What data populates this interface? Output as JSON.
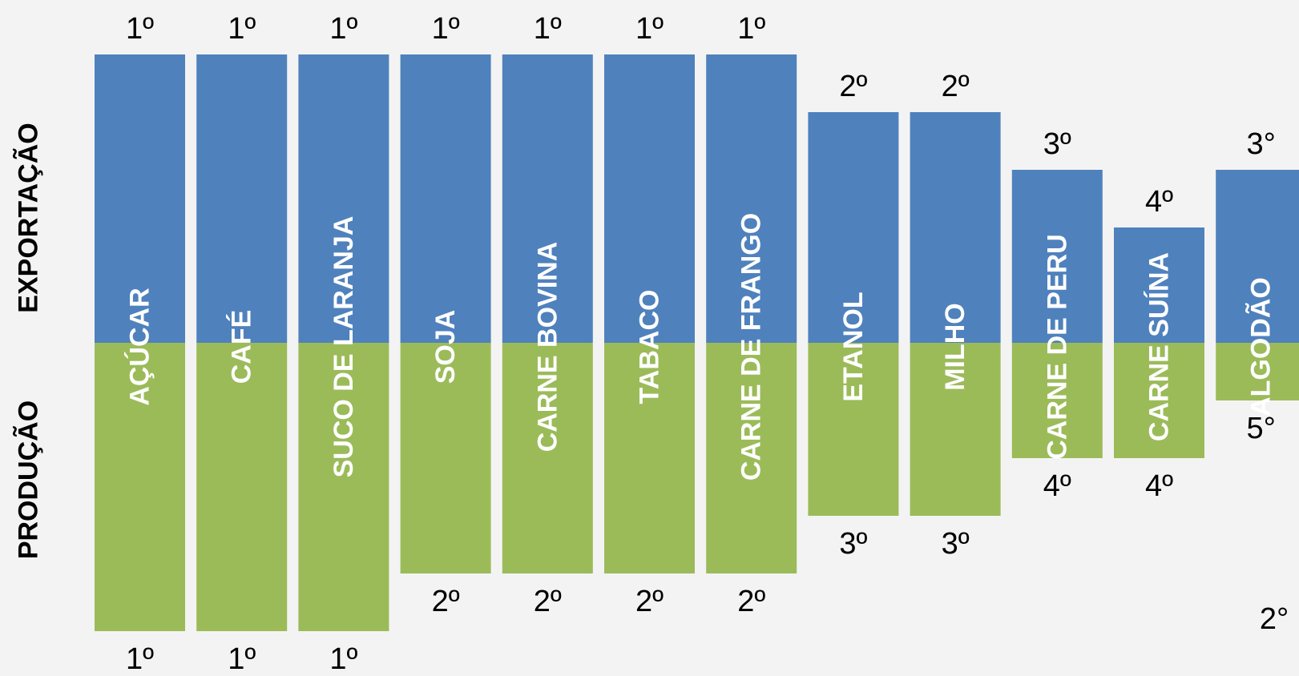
{
  "chart_data": {
    "type": "bar",
    "subtype": "diverging-rank",
    "row_labels": {
      "top": "EXPORTAÇÃO",
      "bottom": "PRODUÇÃO"
    },
    "colors": {
      "top": "#4f81bd",
      "bottom": "#9bbb59",
      "bar_label": "#ffffff",
      "rank_label": "#000000"
    },
    "categories": [
      "AÇÚCAR",
      "CAFÉ",
      "SUCO DE LARANJA",
      "SOJA",
      "CARNE BOVINA",
      "TABACO",
      "CARNE DE FRANGO",
      "ETANOL",
      "MILHO",
      "CARNE DE PERU",
      "CARNE SUÍNA",
      "ALGODÃO"
    ],
    "series": [
      {
        "name": "EXPORTAÇÃO",
        "ranks": [
          1,
          1,
          1,
          1,
          1,
          1,
          1,
          2,
          2,
          3,
          4,
          3
        ],
        "rank_labels": [
          "1º",
          "1º",
          "1º",
          "1º",
          "1º",
          "1º",
          "1º",
          "2º",
          "2º",
          "3º",
          "4º",
          "3°"
        ]
      },
      {
        "name": "PRODUÇÃO",
        "ranks": [
          1,
          1,
          1,
          2,
          2,
          2,
          2,
          3,
          3,
          4,
          4,
          5
        ],
        "rank_labels": [
          "1º",
          "1º",
          "1º",
          "2º",
          "2º",
          "2º",
          "2º",
          "3º",
          "3º",
          "4º",
          "4º",
          "5°"
        ]
      }
    ],
    "extra_annotation": "2°"
  }
}
